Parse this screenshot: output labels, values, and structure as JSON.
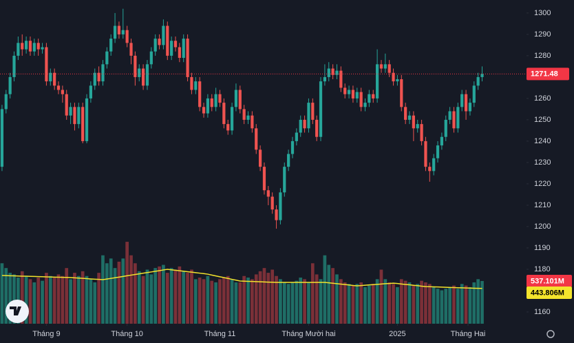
{
  "chart_data": {
    "type": "candlestick",
    "open": [
      1228,
      1255,
      1262,
      1270,
      1280,
      1286,
      1283,
      1287,
      1282,
      1286,
      1283,
      1284,
      1268,
      1272,
      1266,
      1264,
      1262,
      1252,
      1256,
      1248,
      1256,
      1240,
      1260,
      1266,
      1272,
      1268,
      1276,
      1282,
      1288,
      1294,
      1290,
      1292,
      1286,
      1280,
      1270,
      1274,
      1266,
      1276,
      1282,
      1288,
      1285,
      1294,
      1280,
      1287,
      1284,
      1279,
      1288,
      1270,
      1264,
      1268,
      1256,
      1253,
      1260,
      1256,
      1262,
      1258,
      1248,
      1245,
      1256,
      1264,
      1255,
      1250,
      1252,
      1246,
      1236,
      1228,
      1217,
      1214,
      1208,
      1203,
      1216,
      1228,
      1234,
      1240,
      1244,
      1250,
      1246,
      1258,
      1250,
      1242,
      1268,
      1270,
      1274,
      1271,
      1273,
      1265,
      1262,
      1264,
      1260,
      1263,
      1256,
      1258,
      1262,
      1260,
      1276,
      1274,
      1276,
      1272,
      1268,
      1269,
      1256,
      1250,
      1252,
      1246,
      1248,
      1240,
      1228,
      1226,
      1232,
      1238,
      1242,
      1250,
      1254,
      1246,
      1256,
      1262,
      1254,
      1258,
      1266,
      1270
    ],
    "high": [
      1257,
      1264,
      1272,
      1282,
      1289,
      1290,
      1289,
      1289,
      1288,
      1288,
      1286,
      1286,
      1274,
      1274,
      1268,
      1266,
      1264,
      1258,
      1258,
      1258,
      1258,
      1262,
      1268,
      1274,
      1275,
      1278,
      1284,
      1290,
      1300,
      1296,
      1302,
      1294,
      1288,
      1282,
      1276,
      1276,
      1278,
      1284,
      1290,
      1290,
      1297,
      1296,
      1289,
      1289,
      1286,
      1290,
      1290,
      1272,
      1270,
      1270,
      1258,
      1262,
      1262,
      1265,
      1264,
      1260,
      1250,
      1258,
      1267,
      1266,
      1257,
      1254,
      1254,
      1248,
      1238,
      1230,
      1219,
      1216,
      1210,
      1218,
      1230,
      1236,
      1242,
      1246,
      1252,
      1252,
      1260,
      1260,
      1252,
      1270,
      1276,
      1277,
      1276,
      1276,
      1275,
      1267,
      1266,
      1266,
      1265,
      1265,
      1260,
      1264,
      1264,
      1283,
      1278,
      1281,
      1278,
      1274,
      1271,
      1271,
      1258,
      1254,
      1254,
      1250,
      1250,
      1242,
      1230,
      1234,
      1240,
      1244,
      1252,
      1256,
      1256,
      1258,
      1264,
      1264,
      1260,
      1268,
      1272,
      1275
    ],
    "low": [
      1226,
      1253,
      1260,
      1268,
      1278,
      1280,
      1281,
      1280,
      1280,
      1280,
      1281,
      1266,
      1266,
      1264,
      1262,
      1258,
      1250,
      1248,
      1245,
      1246,
      1239,
      1239,
      1258,
      1264,
      1266,
      1266,
      1274,
      1280,
      1286,
      1288,
      1288,
      1284,
      1276,
      1266,
      1268,
      1264,
      1264,
      1274,
      1280,
      1283,
      1283,
      1278,
      1278,
      1282,
      1277,
      1277,
      1268,
      1262,
      1262,
      1254,
      1251,
      1251,
      1254,
      1254,
      1256,
      1246,
      1243,
      1243,
      1254,
      1253,
      1248,
      1248,
      1244,
      1234,
      1226,
      1215,
      1210,
      1206,
      1199,
      1201,
      1214,
      1226,
      1232,
      1238,
      1242,
      1244,
      1244,
      1248,
      1240,
      1240,
      1266,
      1268,
      1269,
      1269,
      1263,
      1260,
      1260,
      1258,
      1258,
      1254,
      1254,
      1256,
      1258,
      1258,
      1272,
      1272,
      1270,
      1266,
      1266,
      1254,
      1248,
      1248,
      1240,
      1244,
      1238,
      1226,
      1221,
      1224,
      1230,
      1236,
      1240,
      1248,
      1244,
      1244,
      1254,
      1250,
      1252,
      1256,
      1264,
      1268
    ],
    "close": [
      1255,
      1262,
      1270,
      1280,
      1286,
      1283,
      1287,
      1282,
      1286,
      1283,
      1284,
      1268,
      1272,
      1266,
      1264,
      1262,
      1252,
      1256,
      1248,
      1256,
      1240,
      1260,
      1266,
      1272,
      1268,
      1276,
      1282,
      1288,
      1294,
      1290,
      1292,
      1286,
      1280,
      1270,
      1274,
      1266,
      1276,
      1282,
      1288,
      1285,
      1294,
      1280,
      1287,
      1284,
      1279,
      1288,
      1270,
      1264,
      1268,
      1256,
      1253,
      1260,
      1256,
      1262,
      1258,
      1248,
      1245,
      1256,
      1264,
      1255,
      1250,
      1252,
      1246,
      1236,
      1228,
      1217,
      1214,
      1208,
      1203,
      1216,
      1228,
      1234,
      1240,
      1244,
      1250,
      1246,
      1258,
      1250,
      1242,
      1268,
      1270,
      1274,
      1271,
      1273,
      1265,
      1262,
      1264,
      1260,
      1263,
      1256,
      1258,
      1262,
      1260,
      1276,
      1274,
      1276,
      1272,
      1268,
      1269,
      1256,
      1250,
      1252,
      1246,
      1248,
      1240,
      1228,
      1226,
      1232,
      1238,
      1242,
      1250,
      1254,
      1246,
      1256,
      1262,
      1254,
      1258,
      1266,
      1270,
      1271.48
    ],
    "volume": [
      760,
      700,
      640,
      620,
      580,
      660,
      600,
      560,
      520,
      580,
      540,
      640,
      600,
      580,
      620,
      600,
      700,
      560,
      640,
      600,
      660,
      600,
      560,
      520,
      640,
      860,
      760,
      820,
      700,
      780,
      820,
      1030,
      860,
      760,
      660,
      600,
      680,
      620,
      700,
      720,
      740,
      640,
      700,
      680,
      720,
      660,
      640,
      680,
      560,
      580,
      560,
      600,
      540,
      520,
      560,
      580,
      600,
      560,
      520,
      520,
      600,
      580,
      560,
      620,
      660,
      700,
      640,
      680,
      600,
      560,
      520,
      500,
      520,
      540,
      580,
      560,
      520,
      760,
      620,
      560,
      860,
      740,
      700,
      620,
      560,
      520,
      500,
      480,
      500,
      520,
      460,
      480,
      500,
      560,
      680,
      560,
      520,
      500,
      460,
      560,
      540,
      520,
      480,
      500,
      540,
      520,
      500,
      460,
      440,
      420,
      440,
      460,
      480,
      440,
      500,
      480,
      460,
      520,
      560,
      537.101
    ],
    "volume_ma": [
      606,
      605,
      603,
      602,
      600,
      598,
      597,
      595,
      594,
      592,
      591,
      589,
      588,
      586,
      585,
      583,
      582,
      580,
      577,
      574,
      570,
      567,
      563,
      560,
      557,
      554,
      562,
      570,
      578,
      586,
      594,
      603,
      611,
      619,
      627,
      635,
      643,
      651,
      659,
      667,
      676,
      684,
      678,
      672,
      666,
      660,
      654,
      648,
      642,
      636,
      630,
      623,
      612,
      601,
      590,
      580,
      569,
      558,
      548,
      537,
      535,
      533,
      531,
      529,
      527,
      525,
      523,
      522,
      520,
      520,
      520,
      520,
      520,
      520,
      520,
      520,
      520,
      520,
      520,
      520,
      520,
      514,
      509,
      503,
      498,
      492,
      487,
      481,
      476,
      480,
      484,
      488,
      491,
      495,
      499,
      503,
      506,
      510,
      505,
      499,
      494,
      489,
      483,
      478,
      472,
      467,
      465,
      463,
      462,
      460,
      458,
      456,
      455,
      453,
      451,
      449,
      448,
      446,
      445,
      443.806
    ],
    "volume_label": "537.101M",
    "volume_ma_label": "443.806M",
    "xlim": [
      -0.5,
      130
    ],
    "ylim": [
      1154.5,
      1306.1
    ],
    "volume_ylim": [
      0,
      4070
    ],
    "xticks": [
      {
        "value": 11,
        "label": "Tháng 9"
      },
      {
        "value": 31,
        "label": "Tháng 10"
      },
      {
        "value": 54,
        "label": "Tháng 11"
      },
      {
        "value": 76,
        "label": "Tháng Mười hai"
      },
      {
        "value": 98,
        "label": "2025"
      },
      {
        "value": 115.5,
        "label": "Tháng Hai"
      }
    ],
    "yticks": [
      1160,
      1170,
      1180,
      1190,
      1200,
      1210,
      1220,
      1230,
      1240,
      1250,
      1260,
      1270,
      1280,
      1290,
      1300
    ],
    "up_color": "#26a69a",
    "down_color": "#ef5350",
    "volume_up_color": "#1f6e66",
    "volume_down_color": "#7b3038",
    "volume_ma_color": "#f4e42c",
    "price_label_color": "#f23645",
    "grid": false
  }
}
